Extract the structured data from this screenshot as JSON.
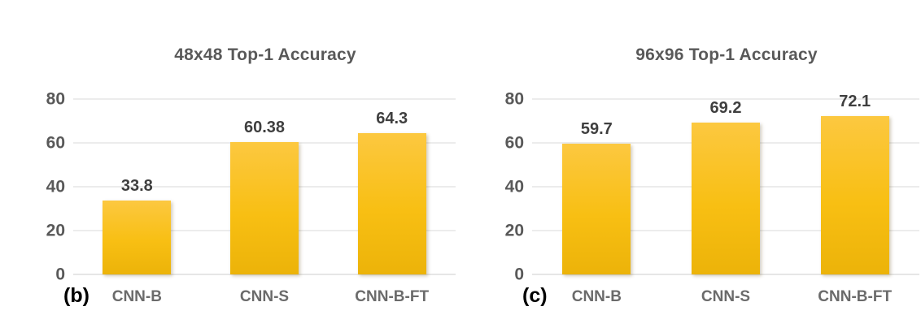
{
  "figure": {
    "background": "#ffffff"
  },
  "colors": {
    "bar_gradient_top": "#fcc840",
    "bar_gradient_mid": "#f8bf13",
    "bar_gradient_bottom": "#ecb309",
    "gridline": "#d9d9d9",
    "title_text": "#595959",
    "tick_text": "#595959",
    "category_text": "#6b6b6b",
    "value_text": "#3f3f3f",
    "panel_label_text": "#000000"
  },
  "chart_data": [
    {
      "type": "bar",
      "panel_label": "(b)",
      "title": "48x48 Top-1 Accuracy",
      "categories": [
        "CNN-B",
        "CNN-S",
        "CNN-B-FT"
      ],
      "values": [
        33.8,
        60.38,
        64.3
      ],
      "value_labels": [
        "33.8",
        "60.38",
        "64.3"
      ],
      "xlabel": "",
      "ylabel": "",
      "ylim": [
        0,
        80
      ],
      "yticks": [
        0,
        20,
        40,
        60,
        80
      ],
      "grid": "horizontal",
      "legend_position": "none"
    },
    {
      "type": "bar",
      "panel_label": "(c)",
      "title": "96x96 Top-1 Accuracy",
      "categories": [
        "CNN-B",
        "CNN-S",
        "CNN-B-FT"
      ],
      "values": [
        59.7,
        69.2,
        72.1
      ],
      "value_labels": [
        "59.7",
        "69.2",
        "72.1"
      ],
      "xlabel": "",
      "ylabel": "",
      "ylim": [
        0,
        80
      ],
      "yticks": [
        0,
        20,
        40,
        60,
        80
      ],
      "grid": "horizontal",
      "legend_position": "none"
    }
  ]
}
